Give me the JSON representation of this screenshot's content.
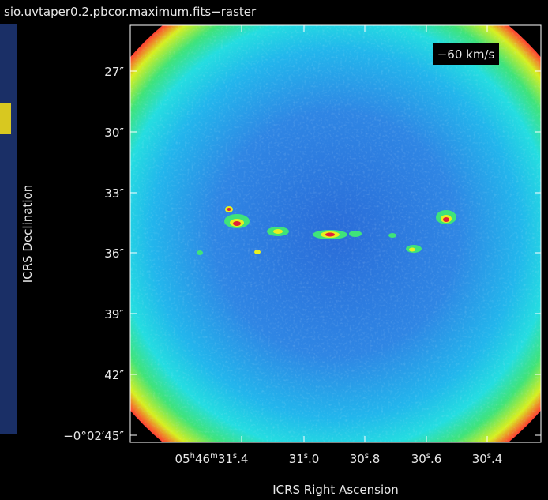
{
  "window": {
    "title": "sio.uvtaper0.2.pbcor.maximum.fits−raster"
  },
  "overlay": {
    "velocity_label": "−60 km/s"
  },
  "axes": {
    "y_label": "ICRS Declination",
    "x_label": "ICRS Right Ascension",
    "y_ticks": [
      "27″",
      "30″",
      "33″",
      "36″",
      "39″",
      "42″",
      "−0°02′45″"
    ],
    "x_ticks": [
      {
        "parts": [
          "05",
          "h",
          "46",
          "m",
          "31",
          "s",
          ".4"
        ]
      },
      {
        "parts": [
          "31",
          "s",
          ".0"
        ]
      },
      {
        "parts": [
          "30",
          "s",
          ".8"
        ]
      },
      {
        "parts": [
          "30",
          "s",
          ".6"
        ]
      },
      {
        "parts": [
          "30",
          "s",
          ".4"
        ]
      }
    ]
  }
}
